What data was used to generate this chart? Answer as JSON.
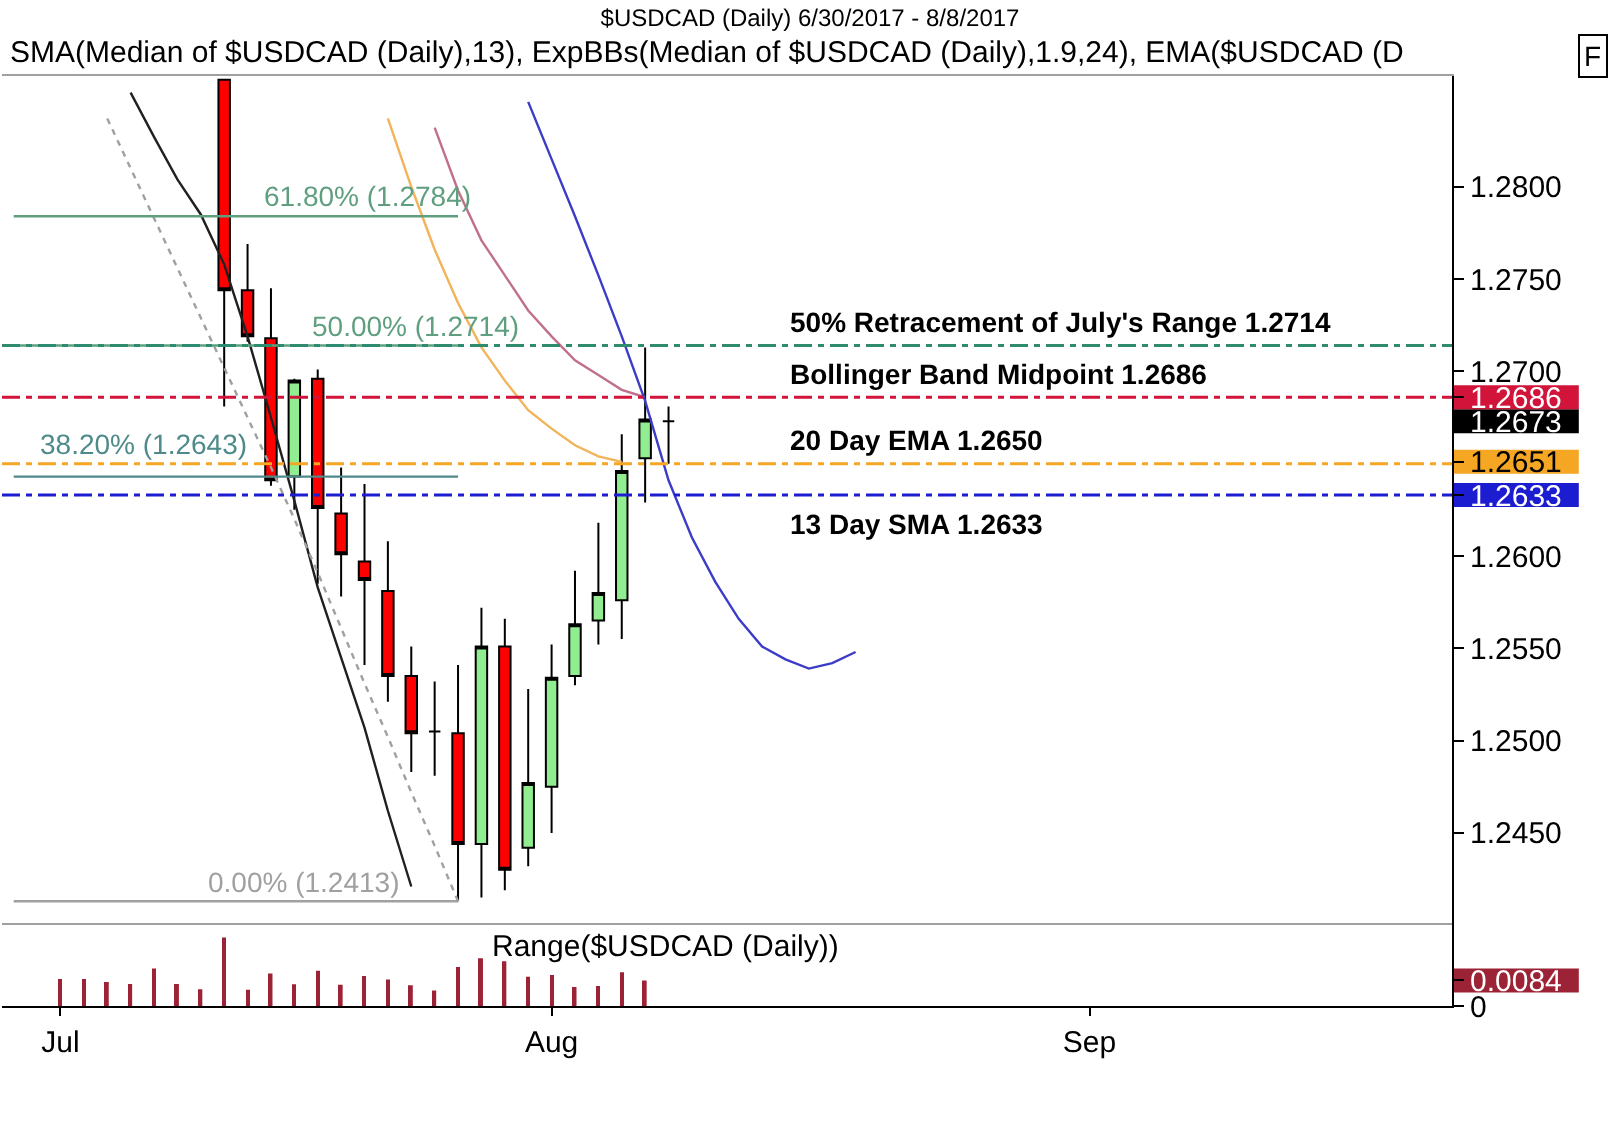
{
  "chart_data": [
    {
      "type": "candlestick",
      "title": "$USDCAD (Daily) 6/30/2017 - 8/8/2017",
      "annotations": [
        "SMA(Median of $USDCAD (Daily),13), ExpBBs(Median of $USDCAD (Daily),1.9,24), EMA($USDCAD (D",
        "F"
      ],
      "categories": [
        null,
        null,
        null,
        null,
        null,
        null,
        null,
        null,
        null,
        null,
        null,
        null,
        null,
        null,
        null,
        null,
        null,
        null,
        null,
        null,
        null,
        null,
        null,
        null,
        null,
        null,
        null,
        null,
        null,
        null,
        null,
        null,
        null,
        null,
        null,
        null,
        null,
        null,
        null,
        null,
        null,
        null,
        null,
        null,
        null,
        null,
        null,
        null,
        null,
        null,
        null,
        null,
        null,
        null,
        null,
        null,
        null,
        null,
        null,
        null,
        null,
        null
      ],
      "ohlc": [
        null,
        null,
        null,
        null,
        null,
        null,
        null,
        null,
        null,
        [
          1.2858,
          1.2858,
          1.2681,
          1.2744
        ],
        [
          1.2744,
          1.2769,
          1.2716,
          1.2719
        ],
        [
          1.2718,
          1.2745,
          1.2638,
          1.2641
        ],
        [
          1.2643,
          1.2696,
          1.2625,
          1.2695
        ],
        [
          1.2696,
          1.2701,
          1.2585,
          1.2626
        ],
        [
          1.2623,
          1.2648,
          1.2578,
          1.2601
        ],
        [
          1.2597,
          1.2639,
          1.2541,
          1.2587
        ],
        [
          1.2581,
          1.2608,
          1.2521,
          1.2535
        ],
        [
          1.2535,
          1.2551,
          1.2483,
          1.2504
        ],
        [
          1.2505,
          1.2532,
          1.2481,
          1.2505
        ],
        [
          1.2504,
          1.2541,
          1.2413,
          1.2444
        ],
        [
          1.2444,
          1.2572,
          1.2415,
          1.2551
        ],
        [
          1.2551,
          1.2566,
          1.2419,
          1.243
        ],
        [
          1.2442,
          1.2528,
          1.2432,
          1.2477
        ],
        [
          1.2475,
          1.2552,
          1.245,
          1.2534
        ],
        [
          1.2535,
          1.2592,
          1.253,
          1.2563
        ],
        [
          1.2565,
          1.2618,
          1.2552,
          1.258
        ],
        [
          1.2576,
          1.2666,
          1.2555,
          1.2646
        ],
        [
          1.2653,
          1.2713,
          1.2629,
          1.2674
        ],
        [
          1.2673,
          1.2681,
          1.265,
          1.2673
        ],
        null,
        null,
        null,
        null,
        null,
        null,
        null,
        null,
        null,
        null,
        null,
        null,
        null,
        null,
        null,
        null,
        null,
        null,
        null,
        null,
        null,
        null,
        null,
        null,
        null,
        null,
        null,
        null,
        null,
        null,
        null,
        null,
        null
      ],
      "colors": [
        null,
        null,
        null,
        null,
        null,
        null,
        null,
        null,
        null,
        "#ff0000",
        "#ff0000",
        "#ff0000",
        "#90ee90",
        "#ff0000",
        "#ff0000",
        "#ff0000",
        "#ff0000",
        "#ff0000",
        "#000000",
        "#ff0000",
        "#90ee90",
        "#ff0000",
        "#90ee90",
        "#90ee90",
        "#90ee90",
        "#90ee90",
        "#90ee90",
        "#90ee90",
        "#000000",
        null,
        null,
        null,
        null,
        null,
        null,
        null,
        null,
        null,
        null,
        null,
        null,
        null,
        null,
        null,
        null,
        null,
        null,
        null,
        null,
        null,
        null,
        null,
        null,
        null,
        null,
        null,
        null,
        null,
        null,
        null,
        null,
        null
      ],
      "series": [
        {
          "type": "line",
          "color": "#202020",
          "values": [
            null,
            null,
            null,
            null,
            null,
            1.2851,
            1.2827,
            1.2804,
            1.2785,
            1.2758,
            1.2719,
            1.2675,
            1.263,
            1.2583,
            1.2545,
            1.2507,
            1.2462,
            1.2421,
            null,
            null,
            null,
            null,
            null,
            null,
            null,
            null,
            null,
            null,
            null,
            null,
            null,
            null,
            null,
            null,
            null,
            null,
            null,
            null,
            null,
            null,
            null,
            null,
            null,
            null,
            null,
            null,
            null,
            null,
            null,
            null,
            null,
            null,
            null,
            null,
            null,
            null,
            null,
            null,
            null,
            null,
            null,
            null
          ]
        },
        {
          "type": "line",
          "color": "#a0a0a0",
          "line_style": "dotted",
          "values": [
            null,
            null,
            null,
            null,
            1.2837,
            1.281,
            1.2783,
            1.2756,
            1.2729,
            1.2702,
            1.2675,
            1.2648,
            1.262,
            1.2591,
            1.2561,
            1.2531,
            1.2502,
            1.2472,
            1.2443,
            1.2413,
            null,
            null,
            null,
            null,
            null,
            null,
            null,
            null,
            null,
            null,
            null,
            null,
            null,
            null,
            null,
            null,
            null,
            null,
            null,
            null,
            null,
            null,
            null,
            null,
            null,
            null,
            null,
            null,
            null,
            null,
            null,
            null,
            null,
            null,
            null,
            null,
            null,
            null,
            null,
            null,
            null,
            null
          ]
        },
        {
          "type": "line",
          "color": "#f2b35a",
          "values": [
            null,
            null,
            null,
            null,
            null,
            null,
            null,
            null,
            null,
            null,
            null,
            null,
            null,
            null,
            null,
            null,
            1.2837,
            1.28,
            1.2766,
            1.2737,
            1.2713,
            1.2695,
            1.2679,
            1.2669,
            1.266,
            1.2654,
            1.2651,
            null,
            null,
            null,
            null,
            null,
            null,
            null,
            null,
            null,
            null,
            null,
            null,
            null,
            null,
            null,
            null,
            null,
            null,
            null,
            null,
            null,
            null,
            null,
            null,
            null,
            null,
            null,
            null,
            null,
            null,
            null,
            null,
            null,
            null,
            null
          ]
        },
        {
          "type": "line",
          "color": "#c0708a",
          "values": [
            null,
            null,
            null,
            null,
            null,
            null,
            null,
            null,
            null,
            null,
            null,
            null,
            null,
            null,
            null,
            null,
            null,
            null,
            1.2832,
            1.2798,
            1.2771,
            1.2752,
            1.2733,
            1.2719,
            1.2706,
            1.2698,
            1.269,
            1.2686,
            null,
            null,
            null,
            null,
            null,
            null,
            null,
            null,
            null,
            null,
            null,
            null,
            null,
            null,
            null,
            null,
            null,
            null,
            null,
            null,
            null,
            null,
            null,
            null,
            null,
            null,
            null,
            null,
            null,
            null,
            null,
            null,
            null,
            null
          ]
        },
        {
          "type": "line",
          "color": "#3c3cc8",
          "values": [
            null,
            null,
            null,
            null,
            null,
            null,
            null,
            null,
            null,
            null,
            null,
            null,
            null,
            null,
            null,
            null,
            null,
            null,
            null,
            null,
            null,
            null,
            1.2846,
            1.2815,
            1.2784,
            1.2752,
            1.2719,
            1.2684,
            1.2641,
            1.261,
            1.2586,
            1.2566,
            1.2551,
            1.2544,
            1.2539,
            1.2542,
            1.2548,
            null,
            null,
            null,
            null,
            null,
            null,
            null,
            null,
            null,
            null,
            null,
            null,
            null,
            null,
            null,
            null,
            null,
            null,
            null,
            null,
            null,
            null,
            null,
            null,
            null
          ]
        },
        {
          "type": "line",
          "name": "61.80% (1.2784)",
          "color": "#5f9f7f",
          "values": [
            1.2784,
            1.2784,
            1.2784,
            1.2784,
            1.2784,
            1.2784,
            1.2784,
            1.2784,
            1.2784,
            1.2784,
            1.2784,
            1.2784,
            1.2784,
            1.2784,
            1.2784,
            1.2784,
            1.2784,
            1.2784,
            1.2784,
            1.2784,
            null,
            null,
            null,
            null,
            null,
            null,
            null,
            null,
            null,
            null,
            null,
            null,
            null,
            null,
            null,
            null,
            null,
            null,
            null,
            null,
            null,
            null,
            null,
            null,
            null,
            null,
            null,
            null,
            null,
            null,
            null,
            null,
            null,
            null,
            null,
            null,
            null,
            null,
            null,
            null,
            null,
            null
          ]
        },
        {
          "type": "line",
          "name": "50.00% (1.2714)",
          "color": "#5f9f7f",
          "values": [
            1.2714,
            1.2714,
            1.2714,
            1.2714,
            1.2714,
            1.2714,
            1.2714,
            1.2714,
            1.2714,
            1.2714,
            1.2714,
            1.2714,
            1.2714,
            1.2714,
            1.2714,
            1.2714,
            1.2714,
            1.2714,
            1.2714,
            1.2714,
            null,
            null,
            null,
            null,
            null,
            null,
            null,
            null,
            null,
            null,
            null,
            null,
            null,
            null,
            null,
            null,
            null,
            null,
            null,
            null,
            null,
            null,
            null,
            null,
            null,
            null,
            null,
            null,
            null,
            null,
            null,
            null,
            null,
            null,
            null,
            null,
            null,
            null,
            null,
            null,
            null,
            null
          ]
        },
        {
          "type": "line",
          "name": "38.20% (1.2643)",
          "color": "#4f8a8a",
          "values": [
            1.2643,
            1.2643,
            1.2643,
            1.2643,
            1.2643,
            1.2643,
            1.2643,
            1.2643,
            1.2643,
            1.2643,
            1.2643,
            1.2643,
            1.2643,
            1.2643,
            1.2643,
            1.2643,
            1.2643,
            1.2643,
            1.2643,
            1.2643,
            null,
            null,
            null,
            null,
            null,
            null,
            null,
            null,
            null,
            null,
            null,
            null,
            null,
            null,
            null,
            null,
            null,
            null,
            null,
            null,
            null,
            null,
            null,
            null,
            null,
            null,
            null,
            null,
            null,
            null,
            null,
            null,
            null,
            null,
            null,
            null,
            null,
            null,
            null,
            null,
            null,
            null
          ]
        },
        {
          "type": "line",
          "name": "0.00% (1.2413)",
          "color": "#a0a0a0",
          "values": [
            1.2413,
            1.2413,
            1.2413,
            1.2413,
            1.2413,
            1.2413,
            1.2413,
            1.2413,
            1.2413,
            1.2413,
            1.2413,
            1.2413,
            1.2413,
            1.2413,
            1.2413,
            1.2413,
            1.2413,
            1.2413,
            1.2413,
            1.2413,
            null,
            null,
            null,
            null,
            null,
            null,
            null,
            null,
            null,
            null,
            null,
            null,
            null,
            null,
            null,
            null,
            null,
            null,
            null,
            null,
            null,
            null,
            null,
            null,
            null,
            null,
            null,
            null,
            null,
            null,
            null,
            null,
            null,
            null,
            null,
            null,
            null,
            null,
            null,
            null,
            null,
            null
          ]
        }
      ],
      "ref_lines": [
        {
          "axis": "y",
          "value": 1.2714,
          "label": "50% Retracement of July's Range 1.2714",
          "color": "#2e8b6e",
          "line_style": "dashdot"
        },
        {
          "axis": "y",
          "value": 1.2686,
          "label": "Bollinger Band Midpoint 1.2686",
          "color": "#d2143a",
          "line_style": "dashdot"
        },
        {
          "axis": "y",
          "value": 1.265,
          "label": "20 Day EMA 1.2650",
          "color": "#f5a623",
          "line_style": "dashdot"
        },
        {
          "axis": "y",
          "value": 1.2633,
          "label": "13 Day SMA 1.2633",
          "color": "#1c1cd0",
          "line_style": "dashdot"
        }
      ],
      "ylim": [
        1.2401,
        1.286
      ],
      "yticks": [
        {
          "value": 1.245,
          "label": "1.2450"
        },
        {
          "value": 1.25,
          "label": "1.2500"
        },
        {
          "value": 1.255,
          "label": "1.2550"
        },
        {
          "value": 1.26,
          "label": "1.2600"
        },
        {
          "value": 1.2633,
          "label": "1.2633"
        },
        {
          "value": 1.2651,
          "label": "1.2651"
        },
        {
          "value": 1.2673,
          "label": "1.2673"
        },
        {
          "value": 1.2686,
          "label": "1.2686"
        },
        {
          "value": 1.27,
          "label": "1.2700"
        },
        {
          "value": 1.275,
          "label": "1.2750"
        },
        {
          "value": 1.28,
          "label": "1.2800"
        }
      ]
    },
    {
      "type": "bar",
      "title": "Range($USDCAD (Daily))",
      "color": "#9b2335",
      "categories": [
        null,
        null,
        "Jul",
        null,
        null,
        null,
        null,
        null,
        null,
        null,
        null,
        null,
        null,
        null,
        null,
        null,
        null,
        null,
        null,
        null,
        null,
        null,
        null,
        "Aug",
        null,
        null,
        null,
        null,
        null,
        null,
        null,
        null,
        null,
        null,
        null,
        null,
        null,
        null,
        null,
        null,
        null,
        null,
        null,
        null,
        null,
        null,
        "Sep",
        null,
        null,
        null,
        null,
        null,
        null,
        null,
        null,
        null,
        null,
        null,
        null,
        null,
        null,
        null
      ],
      "values": [
        null,
        null,
        0.0089,
        0.0089,
        0.0079,
        0.0072,
        0.0123,
        0.0072,
        0.0055,
        0.0225,
        0.0053,
        0.0107,
        0.0071,
        0.0116,
        0.007,
        0.0098,
        0.0087,
        0.0068,
        0.0051,
        0.0128,
        0.0157,
        0.0147,
        0.0096,
        0.0102,
        0.0062,
        0.0066,
        0.0111,
        0.0084,
        null,
        null,
        null,
        null,
        null,
        null,
        null,
        null,
        null,
        null,
        null,
        null,
        null,
        null,
        null,
        null,
        null,
        null,
        null,
        null,
        null,
        null,
        null,
        null,
        null,
        null,
        null,
        null,
        null,
        null,
        null,
        null,
        null,
        null
      ],
      "ylim": [
        0,
        0.0271
      ],
      "yticks": [
        0,
        {
          "value": 0.0084,
          "label": "0.0084"
        }
      ]
    }
  ]
}
